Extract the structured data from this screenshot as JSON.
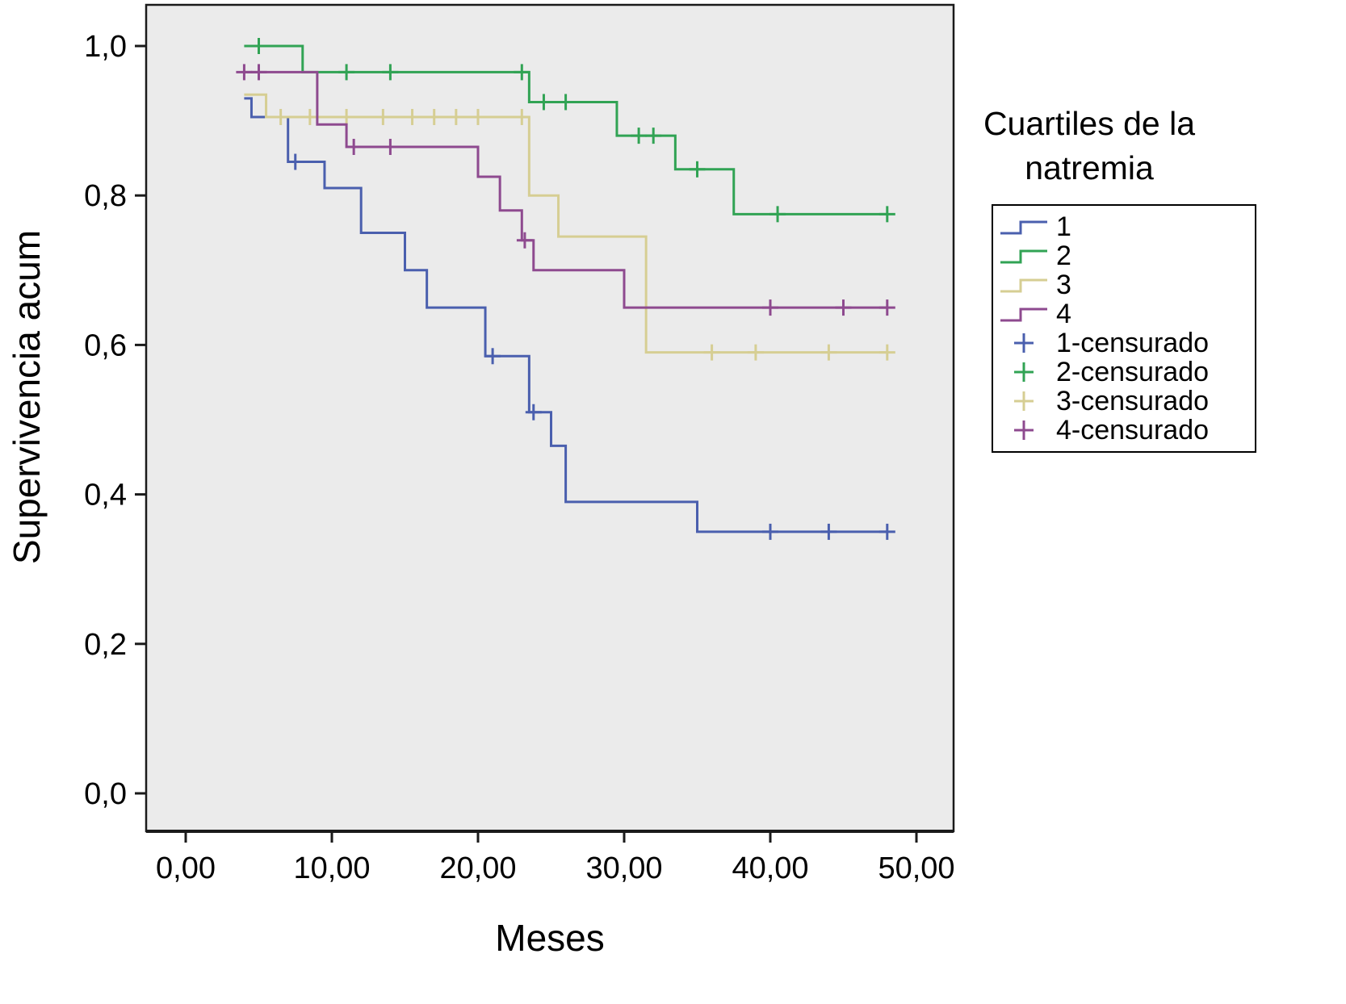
{
  "figure": {
    "background": "#ffffff",
    "plot_background": "#ebebeb",
    "frame_color": "#1a1a1a"
  },
  "chart_data": {
    "type": "line",
    "subtype": "kaplan-meier-step-survival",
    "title": "",
    "xlabel": "Meses",
    "ylabel": "Supervivencia acum",
    "xlim": [
      -3,
      53
    ],
    "ylim": [
      -0.05,
      1.05
    ],
    "grid": false,
    "x_ticks": [
      {
        "v": 0,
        "label": "0,00"
      },
      {
        "v": 10,
        "label": "10,00"
      },
      {
        "v": 20,
        "label": "20,00"
      },
      {
        "v": 30,
        "label": "30,00"
      },
      {
        "v": 40,
        "label": "40,00"
      },
      {
        "v": 50,
        "label": "50,00"
      }
    ],
    "y_ticks": [
      {
        "v": 0.0,
        "label": "0,0"
      },
      {
        "v": 0.2,
        "label": "0,2"
      },
      {
        "v": 0.4,
        "label": "0,4"
      },
      {
        "v": 0.6,
        "label": "0,6"
      },
      {
        "v": 0.8,
        "label": "0,8"
      },
      {
        "v": 1.0,
        "label": "1,0"
      }
    ],
    "legend": {
      "title": "Cuartiles de la natremia",
      "position": "right",
      "entries": [
        {
          "label": "1",
          "type": "line",
          "series": "1"
        },
        {
          "label": "2",
          "type": "line",
          "series": "2"
        },
        {
          "label": "3",
          "type": "line",
          "series": "3"
        },
        {
          "label": "4",
          "type": "line",
          "series": "4"
        },
        {
          "label": "1-censurado",
          "type": "plus",
          "series": "1"
        },
        {
          "label": "2-censurado",
          "type": "plus",
          "series": "2"
        },
        {
          "label": "3-censurado",
          "type": "plus",
          "series": "3"
        },
        {
          "label": "4-censurado",
          "type": "plus",
          "series": "4"
        }
      ]
    },
    "series": [
      {
        "name": "1",
        "color": "#4a5fae",
        "end": 48,
        "steps": [
          [
            4,
            0.93
          ],
          [
            4.5,
            0.905
          ],
          [
            7,
            0.845
          ],
          [
            9.5,
            0.81
          ],
          [
            12,
            0.75
          ],
          [
            15,
            0.7
          ],
          [
            16.5,
            0.65
          ],
          [
            20.5,
            0.585
          ],
          [
            23.5,
            0.51
          ],
          [
            25,
            0.465
          ],
          [
            26,
            0.39
          ],
          [
            35,
            0.35
          ]
        ],
        "censored": [
          [
            7.5,
            0.845
          ],
          [
            21,
            0.585
          ],
          [
            23.8,
            0.51
          ],
          [
            40,
            0.35
          ],
          [
            44,
            0.35
          ],
          [
            48,
            0.35
          ]
        ]
      },
      {
        "name": "2",
        "color": "#31a354",
        "end": 48,
        "steps": [
          [
            4,
            1.0
          ],
          [
            8,
            0.965
          ],
          [
            23.5,
            0.925
          ],
          [
            29.5,
            0.88
          ],
          [
            33.5,
            0.835
          ],
          [
            37.5,
            0.775
          ]
        ],
        "censored": [
          [
            5,
            1.0
          ],
          [
            11,
            0.965
          ],
          [
            14,
            0.965
          ],
          [
            23,
            0.965
          ],
          [
            24.5,
            0.925
          ],
          [
            26,
            0.925
          ],
          [
            31,
            0.88
          ],
          [
            32,
            0.88
          ],
          [
            35,
            0.835
          ],
          [
            40.5,
            0.775
          ],
          [
            48,
            0.775
          ]
        ]
      },
      {
        "name": "3",
        "color": "#d6ce93",
        "end": 48,
        "steps": [
          [
            4,
            0.935
          ],
          [
            5.5,
            0.905
          ],
          [
            23.5,
            0.8
          ],
          [
            25.5,
            0.745
          ],
          [
            31.5,
            0.59
          ]
        ],
        "censored": [
          [
            6.5,
            0.905
          ],
          [
            8.5,
            0.905
          ],
          [
            11,
            0.905
          ],
          [
            13.5,
            0.905
          ],
          [
            15.5,
            0.905
          ],
          [
            17,
            0.905
          ],
          [
            18.5,
            0.905
          ],
          [
            20,
            0.905
          ],
          [
            23,
            0.905
          ],
          [
            36,
            0.59
          ],
          [
            39,
            0.59
          ],
          [
            44,
            0.59
          ],
          [
            48,
            0.59
          ]
        ]
      },
      {
        "name": "4",
        "color": "#8e4a8f",
        "end": 48,
        "steps": [
          [
            4,
            0.965
          ],
          [
            9,
            0.895
          ],
          [
            11,
            0.865
          ],
          [
            20,
            0.825
          ],
          [
            21.5,
            0.78
          ],
          [
            23,
            0.74
          ],
          [
            23.8,
            0.7
          ],
          [
            30,
            0.65
          ]
        ],
        "censored": [
          [
            4,
            0.965
          ],
          [
            5,
            0.965
          ],
          [
            11.5,
            0.865
          ],
          [
            14,
            0.865
          ],
          [
            23.2,
            0.74
          ],
          [
            40,
            0.65
          ],
          [
            45,
            0.65
          ],
          [
            48,
            0.65
          ]
        ]
      }
    ]
  }
}
